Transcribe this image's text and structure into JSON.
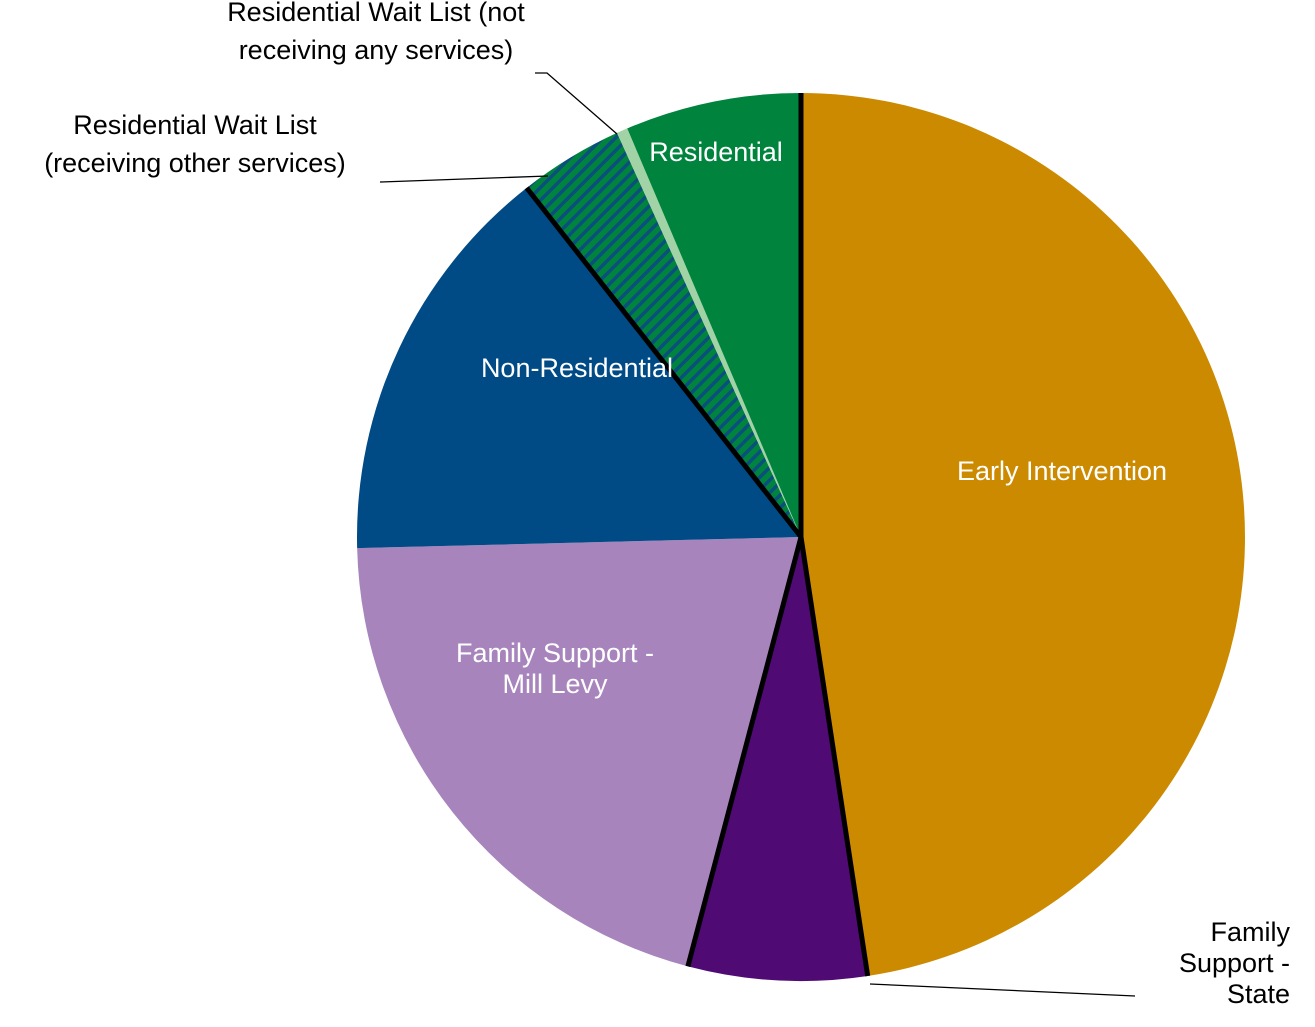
{
  "chart_data": {
    "type": "pie",
    "title": "",
    "slices": [
      {
        "label": "Early Intervention",
        "label_lines": [
          "Early Intervention"
        ],
        "value": 47.6,
        "color": "#cc8a00",
        "pattern": "solid",
        "label_color": "#ffffff"
      },
      {
        "label": "Family Support - State",
        "label_lines": [
          "Family",
          "Support -",
          "State"
        ],
        "value": 6.5,
        "color": "#4f0a73",
        "pattern": "solid",
        "label_color": "#000000"
      },
      {
        "label": "Family Support - Mill Levy",
        "label_lines": [
          "Family Support -",
          "Mill Levy"
        ],
        "value": 20.5,
        "color": "#a784bc",
        "pattern": "solid",
        "label_color": "#ffffff"
      },
      {
        "label": "Non-Residential",
        "label_lines": [
          "Non-Residential"
        ],
        "value": 14.8,
        "color": "#004a85",
        "pattern": "solid",
        "label_color": "#ffffff"
      },
      {
        "label": "Residential Wait List (receiving other services)",
        "label_lines": [
          "Residential Wait List",
          "(receiving other services)"
        ],
        "value": 3.8,
        "color": "#00843d",
        "pattern": "stripes",
        "stripe_color": "#0a4f7d",
        "label_color": "#000000"
      },
      {
        "label": "Residential Wait List (not receiving any services)",
        "label_lines": [
          "Residential Wait List (not",
          "receiving any services)"
        ],
        "value": 0.4,
        "color": "#a2d3a6",
        "pattern": "solid",
        "label_color": "#000000"
      },
      {
        "label": "Residential",
        "label_lines": [
          "Residential"
        ],
        "value": 6.4,
        "color": "#00843d",
        "pattern": "solid",
        "label_color": "#ffffff"
      }
    ],
    "divider_lines_after": [
      "Early Intervention",
      "Family Support - State",
      "Non-Residential",
      "Residential"
    ],
    "legend": "none"
  }
}
